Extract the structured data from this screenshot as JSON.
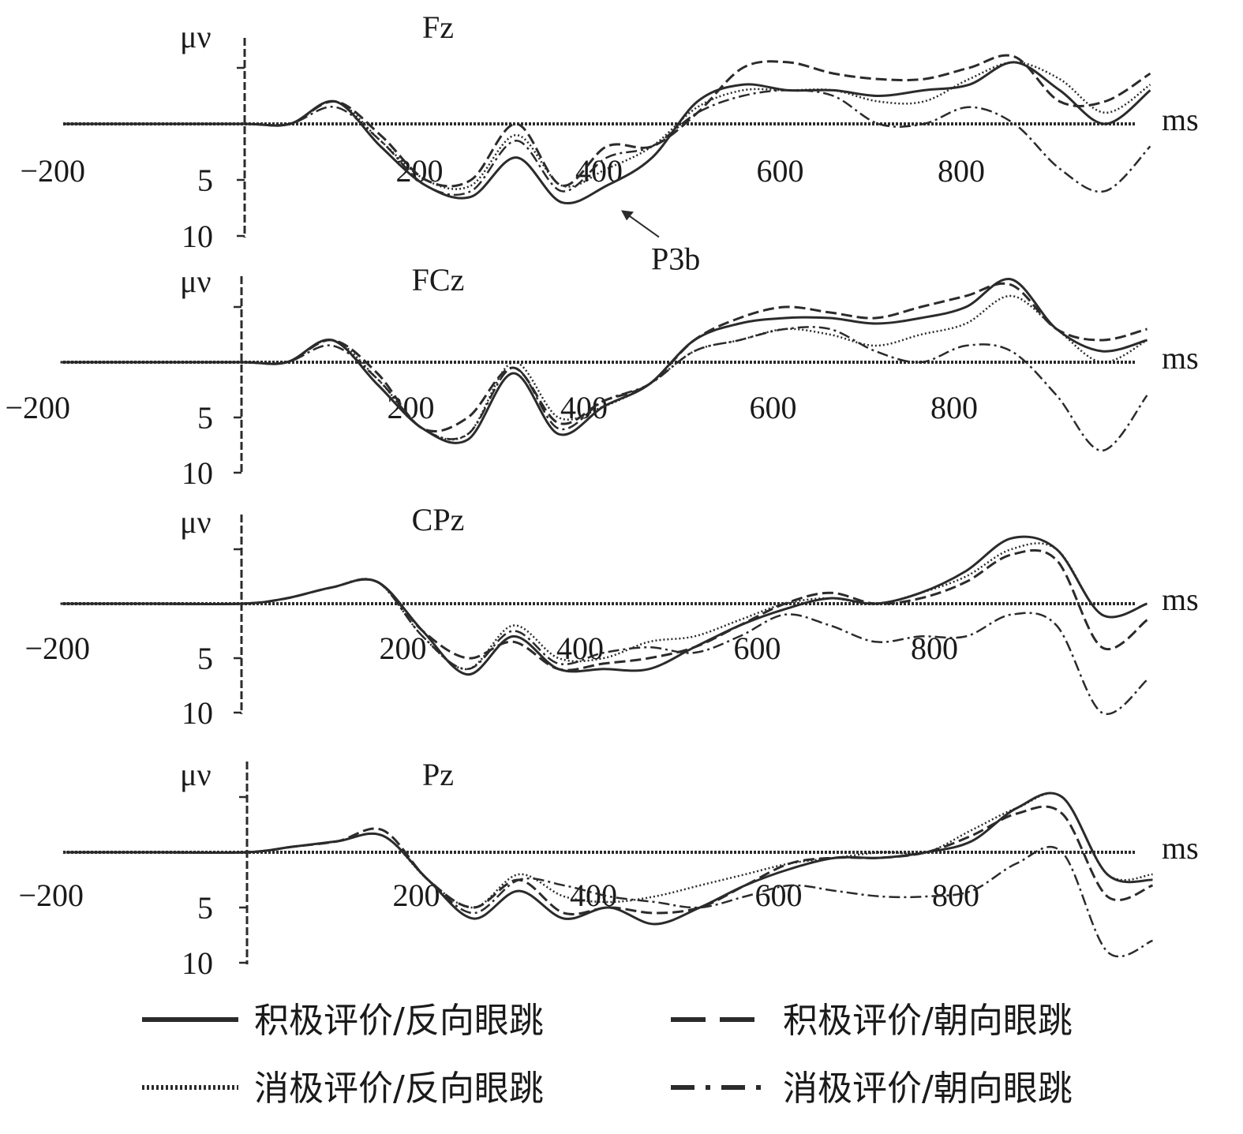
{
  "chart_data": [
    {
      "type": "line",
      "title": "Fz",
      "ylabel": "μν",
      "xlabel": "ms",
      "x_ticks": [
        -200,
        200,
        400,
        600,
        800
      ],
      "y_ticks": [
        5,
        10
      ],
      "ylim": [
        -5,
        10
      ],
      "xlim": [
        -200,
        1000
      ],
      "y_axis_inverted": true,
      "annotations": [
        {
          "text": "P3b",
          "x": 400,
          "y": 7
        }
      ],
      "series": [
        {
          "name": "积极评价/反向眼跳",
          "x": [
            -200,
            -100,
            0,
            50,
            100,
            150,
            200,
            250,
            300,
            350,
            400,
            450,
            500,
            550,
            600,
            650,
            700,
            750,
            800,
            850,
            900,
            950,
            1000
          ],
          "y": [
            0,
            0,
            0,
            0,
            -2,
            2,
            5.5,
            6.5,
            3,
            7,
            5.5,
            3,
            -2,
            -3.5,
            -3,
            -3,
            -2.5,
            -3,
            -3.5,
            -5.5,
            -3,
            0,
            -3
          ]
        },
        {
          "name": "积极评价/朝向眼跳",
          "x": [
            -200,
            -100,
            0,
            50,
            100,
            150,
            200,
            250,
            300,
            350,
            400,
            450,
            500,
            550,
            600,
            650,
            700,
            750,
            800,
            850,
            900,
            950,
            1000
          ],
          "y": [
            0,
            0,
            0,
            0,
            -2,
            1,
            5,
            5,
            0,
            5.5,
            2,
            2,
            -1,
            -5,
            -5.5,
            -4.5,
            -4,
            -4,
            -5,
            -6,
            -2,
            -2,
            -4.5
          ]
        },
        {
          "name": "消极评价/反向眼跳",
          "x": [
            -200,
            -100,
            0,
            50,
            100,
            150,
            200,
            250,
            300,
            350,
            400,
            450,
            500,
            550,
            600,
            650,
            700,
            750,
            800,
            850,
            900,
            950,
            1000
          ],
          "y": [
            0,
            0,
            0,
            0,
            -2,
            1.5,
            5,
            5.5,
            1,
            5.5,
            4,
            2,
            -1.5,
            -3,
            -3,
            -3,
            -2,
            -2,
            -4,
            -5.5,
            -4,
            -1,
            -3.5
          ]
        },
        {
          "name": "消极评价/朝向眼跳",
          "x": [
            -200,
            -100,
            0,
            50,
            100,
            150,
            200,
            250,
            300,
            350,
            400,
            450,
            500,
            550,
            600,
            650,
            700,
            750,
            800,
            850,
            900,
            950,
            1000
          ],
          "y": [
            0,
            0,
            0,
            0,
            -1.5,
            1.5,
            5.5,
            6,
            1.5,
            6,
            3,
            2,
            -1,
            -2.5,
            -3,
            -2.5,
            0,
            0,
            -1.5,
            0,
            4,
            6,
            2
          ]
        }
      ]
    },
    {
      "type": "line",
      "title": "FCz",
      "ylabel": "μν",
      "xlabel": "ms",
      "x_ticks": [
        -200,
        200,
        400,
        600,
        800
      ],
      "y_ticks": [
        5,
        10
      ],
      "ylim": [
        -5,
        10
      ],
      "xlim": [
        -200,
        1000
      ],
      "y_axis_inverted": true,
      "series": [
        {
          "name": "积极评价/反向眼跳",
          "x": [
            -200,
            -100,
            0,
            50,
            100,
            150,
            200,
            250,
            300,
            350,
            400,
            450,
            500,
            550,
            600,
            650,
            700,
            750,
            800,
            850,
            900,
            950,
            1000
          ],
          "y": [
            0,
            0,
            0,
            0,
            -2,
            2,
            6,
            7,
            1,
            6.5,
            4,
            2,
            -2,
            -3.5,
            -4,
            -4,
            -3.5,
            -4,
            -5,
            -7.5,
            -3,
            -1,
            -2
          ]
        },
        {
          "name": "积极评价/朝向眼跳",
          "x": [
            -200,
            -100,
            0,
            50,
            100,
            150,
            200,
            250,
            300,
            350,
            400,
            450,
            500,
            550,
            600,
            650,
            700,
            750,
            800,
            850,
            900,
            950,
            1000
          ],
          "y": [
            0,
            0,
            0,
            0,
            -2,
            1,
            6,
            5,
            0.5,
            5.5,
            3.5,
            2,
            -2,
            -4,
            -5,
            -4.5,
            -4,
            -5,
            -6,
            -7,
            -3,
            -2,
            -3
          ]
        },
        {
          "name": "消极评价/反向眼跳",
          "x": [
            -200,
            -100,
            0,
            50,
            100,
            150,
            200,
            250,
            300,
            350,
            400,
            450,
            500,
            550,
            600,
            650,
            700,
            750,
            800,
            850,
            900,
            950,
            1000
          ],
          "y": [
            0,
            0,
            0,
            0,
            -2,
            1.5,
            6,
            6.5,
            0,
            5,
            4,
            2,
            -1,
            -2,
            -3,
            -2.5,
            -1.5,
            -2.5,
            -3.5,
            -6,
            -3,
            0,
            -2
          ]
        },
        {
          "name": "消极评价/朝向眼跳",
          "x": [
            -200,
            -100,
            0,
            50,
            100,
            150,
            200,
            250,
            300,
            350,
            400,
            450,
            500,
            550,
            600,
            650,
            700,
            750,
            800,
            850,
            900,
            950,
            1000
          ],
          "y": [
            0,
            0,
            0,
            0,
            -1.5,
            1.5,
            6,
            6.5,
            0.5,
            6,
            3.5,
            2,
            -1,
            -2,
            -3,
            -3,
            -1,
            0,
            -1.5,
            -1,
            3,
            8,
            3
          ]
        }
      ]
    },
    {
      "type": "line",
      "title": "CPz",
      "ylabel": "μν",
      "xlabel": "ms",
      "x_ticks": [
        -200,
        200,
        400,
        600,
        800
      ],
      "y_ticks": [
        5,
        10
      ],
      "ylim": [
        -5,
        10
      ],
      "xlim": [
        -200,
        1000
      ],
      "y_axis_inverted": true,
      "series": [
        {
          "name": "积极评价/反向眼跳",
          "x": [
            -200,
            -100,
            0,
            50,
            100,
            150,
            200,
            250,
            300,
            350,
            400,
            450,
            500,
            550,
            600,
            650,
            700,
            750,
            800,
            850,
            900,
            950,
            1000
          ],
          "y": [
            0,
            0,
            0,
            -0.5,
            -1.5,
            -2,
            2.5,
            6.5,
            3,
            6,
            6,
            6,
            4,
            2,
            0.5,
            -0.5,
            0,
            -1,
            -3,
            -6,
            -5,
            1,
            0
          ]
        },
        {
          "name": "积极评价/朝向眼跳",
          "x": [
            -200,
            -100,
            0,
            50,
            100,
            150,
            200,
            250,
            300,
            350,
            400,
            450,
            500,
            550,
            600,
            650,
            700,
            750,
            800,
            850,
            900,
            950,
            1000
          ],
          "y": [
            0,
            0,
            0,
            -0.5,
            -1.5,
            -2,
            2.5,
            5,
            3.5,
            6,
            5.5,
            5,
            4,
            2,
            0,
            -1,
            0,
            -0.5,
            -2,
            -4.5,
            -4,
            4,
            1.5
          ]
        },
        {
          "name": "消极评价/反向眼跳",
          "x": [
            -200,
            -100,
            0,
            50,
            100,
            150,
            200,
            250,
            300,
            350,
            400,
            450,
            500,
            550,
            600,
            650,
            700,
            750,
            800,
            850,
            900,
            950,
            1000
          ],
          "y": [
            0,
            0,
            0,
            -0.5,
            -1.5,
            -2,
            3,
            6,
            2,
            5,
            5,
            3.5,
            3,
            1.5,
            0,
            -0.5,
            0,
            -1,
            -2.5,
            -5,
            -5,
            1,
            0
          ]
        },
        {
          "name": "消极评价/朝向眼跳",
          "x": [
            -200,
            -100,
            0,
            50,
            100,
            150,
            200,
            250,
            300,
            350,
            400,
            450,
            500,
            550,
            600,
            650,
            700,
            750,
            800,
            850,
            900,
            950,
            1000
          ],
          "y": [
            0,
            0,
            0,
            -0.5,
            -1.5,
            -2,
            3,
            6,
            2.5,
            5.5,
            4.5,
            4,
            4.5,
            3,
            1,
            2,
            3.5,
            3,
            3,
            1,
            2,
            10,
            7
          ]
        }
      ]
    },
    {
      "type": "line",
      "title": "Pz",
      "ylabel": "μν",
      "xlabel": "ms",
      "x_ticks": [
        -200,
        200,
        400,
        600,
        800
      ],
      "y_ticks": [
        5,
        10
      ],
      "ylim": [
        -5,
        10
      ],
      "xlim": [
        -200,
        1000
      ],
      "y_axis_inverted": true,
      "series": [
        {
          "name": "积极评价/反向眼跳",
          "x": [
            -200,
            -100,
            0,
            50,
            100,
            150,
            200,
            250,
            300,
            350,
            400,
            450,
            500,
            550,
            600,
            650,
            700,
            750,
            800,
            850,
            900,
            950,
            1000
          ],
          "y": [
            0,
            0,
            0,
            -0.5,
            -1,
            -1.5,
            2.5,
            6,
            3.5,
            6,
            5,
            6.5,
            5,
            3,
            1.5,
            0.5,
            0.5,
            0,
            -1,
            -4,
            -5,
            2,
            2.5
          ]
        },
        {
          "name": "积极评价/朝向眼跳",
          "x": [
            -200,
            -100,
            0,
            50,
            100,
            150,
            200,
            250,
            300,
            350,
            400,
            450,
            500,
            550,
            600,
            650,
            700,
            750,
            800,
            850,
            900,
            950,
            1000
          ],
          "y": [
            0,
            0,
            0,
            -0.5,
            -1,
            -2,
            2.5,
            5,
            2.5,
            5.5,
            5,
            5.5,
            5,
            3,
            1,
            0.5,
            0.5,
            0,
            -1.5,
            -3.5,
            -3.5,
            4,
            3
          ]
        },
        {
          "name": "消极评价/反向眼跳",
          "x": [
            -200,
            -100,
            0,
            50,
            100,
            150,
            200,
            250,
            300,
            350,
            400,
            450,
            500,
            550,
            600,
            650,
            700,
            750,
            800,
            850,
            900,
            950,
            1000
          ],
          "y": [
            0,
            0,
            0,
            -0.5,
            -1,
            -1.5,
            2.5,
            5,
            2,
            4,
            4.5,
            4,
            3,
            2,
            1,
            0.5,
            0,
            0,
            -2,
            -4,
            -5,
            2,
            2
          ]
        },
        {
          "name": "消极评价/朝向眼跳",
          "x": [
            -200,
            -100,
            0,
            50,
            100,
            150,
            200,
            250,
            300,
            350,
            400,
            450,
            500,
            550,
            600,
            650,
            700,
            750,
            800,
            850,
            900,
            950,
            1000
          ],
          "y": [
            0,
            0,
            0,
            -0.5,
            -1,
            -1.5,
            2.5,
            5.5,
            2.5,
            3,
            4,
            4.5,
            5,
            4,
            3,
            3.5,
            4,
            4,
            3.5,
            1,
            0,
            9,
            8
          ]
        }
      ]
    }
  ],
  "legend": [
    {
      "label": "积极评价/反向眼跳",
      "style": "solid"
    },
    {
      "label": "积极评价/朝向眼跳",
      "style": "dashed"
    },
    {
      "label": "消极评价/反向眼跳",
      "style": "dotted"
    },
    {
      "label": "消极评价/朝向眼跳",
      "style": "dashdot"
    }
  ],
  "colors": {
    "line": "#2b2b2b",
    "axis": "#2b2b2b",
    "background": "#ffffff"
  }
}
